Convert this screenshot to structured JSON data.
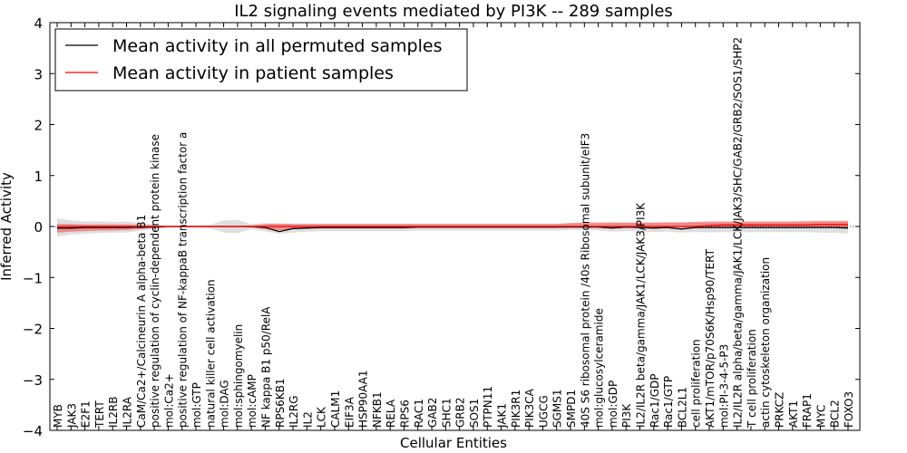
{
  "chart_data": {
    "type": "line",
    "title": "IL2 signaling events mediated by PI3K -- 289 samples",
    "xlabel": "Cellular Entities",
    "ylabel": "Inferred Activity",
    "ylim": [
      -4,
      4
    ],
    "yticks": [
      "4",
      "3",
      "2",
      "1",
      "0",
      "−1",
      "−2",
      "−3",
      "−4"
    ],
    "ytick_values": [
      4,
      3,
      2,
      1,
      0,
      -1,
      -2,
      -3,
      -4
    ],
    "grid": false,
    "legend_position": "top-left",
    "categories": [
      "MYB",
      "JAK3",
      "E2F1",
      "TERT",
      "IL2RB",
      "IL2RA",
      "CaM/Ca2+/Calcineurin A alpha-beta B1",
      "positive regulation of cyclin-dependent protein kinase",
      "mol:Ca2+",
      "positive regulation of NF-kappaB transcription factor a",
      "mol:GTP",
      "natural killer cell activation",
      "mol:DAG",
      "mol:sphingomyelin",
      "mol:cAMP",
      "NF kappa B1 p50/RelA",
      "RPS6KB1",
      "IL2RG",
      "IL2",
      "LCK",
      "CALM1",
      "EIF3A",
      "HSP90AA1",
      "NFKB1",
      "RELA",
      "RPS6",
      "RAC1",
      "GAB2",
      "SHC1",
      "GRB2",
      "SOS1",
      "PTPN11",
      "JAK1",
      "PIK3R1",
      "PIK3CA",
      "UGCG",
      "SGMS1",
      "SMPD1",
      "40S S6 ribosomal protein /40s Ribosomal subunit/eIF3",
      "mol:glucosylceramide",
      "mol:GDP",
      "PI3K",
      "IL2/IL2R beta/gamma/JAK1/LCK/JAK3/PI3K",
      "Rac1/GDP",
      "Rac1/GTP",
      "BCL2L1",
      "cell proliferation",
      "AKT1/mTOR/p70S6K/Hsp90/TERT",
      "mol:PI-3-4-5-P3",
      "IL2/IL2R alpha/beta/gamma/JAK1/LCK/JAK3/SHC/GAB2/GRB2/SOS1/SHP2",
      "T cell proliferation",
      "actin cytoskeleton organization",
      "PRKCZ",
      "AKT1",
      "FRAP1",
      "MYC",
      "BCL2",
      "FOXO3"
    ],
    "series": [
      {
        "name": "Mean activity in all permuted samples",
        "color": "#000000",
        "values": [
          -0.03,
          -0.03,
          -0.02,
          -0.02,
          -0.02,
          -0.02,
          -0.01,
          -0.01,
          0,
          0,
          0,
          0,
          0,
          0,
          0,
          -0.02,
          -0.1,
          -0.04,
          -0.03,
          -0.02,
          -0.02,
          -0.02,
          -0.02,
          -0.02,
          -0.02,
          -0.02,
          -0.01,
          -0.01,
          -0.01,
          -0.01,
          -0.01,
          -0.01,
          -0.01,
          -0.01,
          -0.01,
          -0.01,
          -0.01,
          -0.01,
          -0.01,
          -0.01,
          -0.03,
          -0.01,
          -0.02,
          -0.03,
          -0.02,
          -0.05,
          -0.02,
          -0.02,
          -0.02,
          -0.02,
          -0.02,
          -0.02,
          -0.02,
          -0.02,
          -0.02,
          -0.02,
          -0.02,
          -0.03
        ],
        "band_lower": [
          -0.2,
          -0.16,
          -0.14,
          -0.13,
          -0.12,
          -0.12,
          -0.08,
          -0.05,
          -0.02,
          -0.02,
          -0.02,
          -0.03,
          -0.12,
          -0.13,
          -0.05,
          -0.1,
          -0.14,
          -0.12,
          -0.1,
          -0.09,
          -0.09,
          -0.09,
          -0.09,
          -0.09,
          -0.09,
          -0.09,
          -0.08,
          -0.08,
          -0.08,
          -0.08,
          -0.08,
          -0.08,
          -0.08,
          -0.08,
          -0.08,
          -0.08,
          -0.08,
          -0.07,
          -0.07,
          -0.08,
          -0.1,
          -0.09,
          -0.1,
          -0.11,
          -0.1,
          -0.12,
          -0.11,
          -0.11,
          -0.11,
          -0.11,
          -0.11,
          -0.11,
          -0.11,
          -0.11,
          -0.11,
          -0.12,
          -0.12,
          -0.14
        ],
        "band_upper": [
          0.16,
          0.12,
          0.1,
          0.1,
          0.09,
          0.1,
          0.07,
          0.05,
          0.02,
          0.02,
          0.02,
          0.03,
          0.12,
          0.13,
          0.05,
          0.07,
          0.05,
          0.06,
          0.06,
          0.06,
          0.06,
          0.06,
          0.06,
          0.06,
          0.06,
          0.06,
          0.06,
          0.06,
          0.06,
          0.06,
          0.06,
          0.06,
          0.06,
          0.06,
          0.06,
          0.06,
          0.06,
          0.06,
          0.06,
          0.06,
          0.07,
          0.07,
          0.07,
          0.07,
          0.08,
          0.08,
          0.08,
          0.08,
          0.08,
          0.08,
          0.08,
          0.08,
          0.08,
          0.08,
          0.08,
          0.09,
          0.09,
          0.1
        ]
      },
      {
        "name": "Mean activity in patient samples",
        "color": "#ff0000",
        "values": [
          0,
          0,
          0,
          0,
          0,
          0,
          0,
          0,
          0,
          0,
          0,
          0,
          0,
          0,
          0,
          0,
          0,
          0,
          0,
          0,
          0,
          0,
          0,
          0,
          0,
          0,
          0,
          0,
          0,
          0,
          0,
          0,
          0,
          0,
          0,
          0,
          0,
          0,
          0,
          0,
          0,
          0,
          0,
          0,
          0,
          0,
          0,
          0.02,
          0.03,
          0.03,
          0.03,
          0.03,
          0.03,
          0.03,
          0.03,
          0.04,
          0.04,
          0.04
        ],
        "band_lower": [
          -0.12,
          -0.1,
          -0.09,
          -0.08,
          -0.08,
          -0.07,
          -0.05,
          -0.03,
          -0.01,
          -0.01,
          -0.01,
          -0.01,
          -0.01,
          -0.01,
          -0.02,
          -0.05,
          -0.07,
          -0.05,
          -0.04,
          -0.04,
          -0.04,
          -0.04,
          -0.04,
          -0.04,
          -0.04,
          -0.04,
          -0.03,
          -0.03,
          -0.03,
          -0.03,
          -0.03,
          -0.03,
          -0.03,
          -0.03,
          -0.03,
          -0.03,
          -0.03,
          -0.02,
          -0.02,
          -0.02,
          -0.02,
          -0.02,
          -0.02,
          -0.02,
          -0.02,
          -0.02,
          -0.02,
          -0.02,
          -0.02,
          -0.02,
          -0.02,
          -0.02,
          -0.02,
          -0.02,
          -0.02,
          -0.02,
          -0.02,
          -0.02
        ],
        "band_upper": [
          0.05,
          0.05,
          0.04,
          0.04,
          0.04,
          0.04,
          0.03,
          0.02,
          0.01,
          0.01,
          0.01,
          0.01,
          0.01,
          0.01,
          0.02,
          0.05,
          0.06,
          0.05,
          0.05,
          0.05,
          0.05,
          0.05,
          0.05,
          0.05,
          0.05,
          0.05,
          0.05,
          0.05,
          0.05,
          0.05,
          0.05,
          0.05,
          0.05,
          0.05,
          0.05,
          0.05,
          0.05,
          0.07,
          0.08,
          0.08,
          0.08,
          0.08,
          0.08,
          0.08,
          0.08,
          0.08,
          0.09,
          0.1,
          0.1,
          0.1,
          0.1,
          0.1,
          0.1,
          0.1,
          0.11,
          0.11,
          0.11,
          0.11
        ]
      }
    ]
  }
}
